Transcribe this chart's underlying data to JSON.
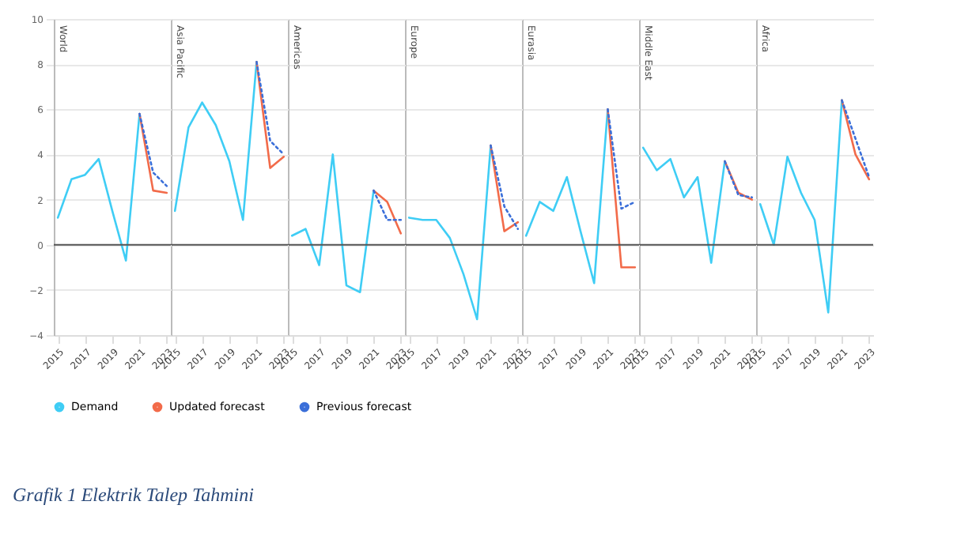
{
  "chart_data": [
    {
      "type": "line",
      "title": "World",
      "xlim": [
        2014.7,
        2023.3
      ],
      "xticks": [
        2015,
        2017,
        2019,
        2021,
        2023
      ],
      "ylim": [
        -4,
        10
      ],
      "yticks": [
        -4,
        -2,
        0,
        2,
        4,
        6,
        8,
        10
      ],
      "grid": "y",
      "legend": "bottom",
      "ref_lines": [
        {
          "axis": "y",
          "value": 0,
          "color": "#555555"
        }
      ],
      "annotations": [
        "Grafik 1 Elektrik Talep Tahmini"
      ],
      "series": [
        {
          "name": "Demand",
          "color": "#3fcdf5",
          "x": [
            2015,
            2016,
            2017,
            2018,
            2019,
            2020,
            2021
          ],
          "values": [
            1.2,
            2.9,
            3.1,
            3.8,
            1.5,
            -0.7,
            5.8
          ]
        },
        {
          "name": "Updated forecast",
          "color": "#f26b4a",
          "x": [
            2021,
            2022,
            2023
          ],
          "values": [
            5.8,
            2.4,
            2.3
          ]
        },
        {
          "name": "Previous forecast",
          "color": "#3b6fd9",
          "line_style": "dotted",
          "x": [
            2021,
            2022,
            2023
          ],
          "values": [
            5.8,
            3.2,
            2.6
          ]
        }
      ]
    },
    {
      "type": "line",
      "title": "Asia Pacific",
      "xlim": [
        2014.7,
        2023.3
      ],
      "xticks": [
        2015,
        2017,
        2019,
        2021,
        2023
      ],
      "ylim": [
        -4,
        10
      ],
      "yticks": [
        -4,
        -2,
        0,
        2,
        4,
        6,
        8,
        10
      ],
      "grid": "y",
      "tick_labels": "x",
      "ref_lines": [
        {
          "axis": "y",
          "value": 0,
          "color": "#555555"
        }
      ],
      "series": [
        {
          "color": "#3fcdf5",
          "x": [
            2015,
            2016,
            2017,
            2018,
            2019,
            2020,
            2021
          ],
          "values": [
            1.5,
            5.2,
            6.3,
            5.3,
            3.7,
            1.1,
            8.1
          ]
        },
        {
          "color": "#f26b4a",
          "x": [
            2021,
            2022,
            2023
          ],
          "values": [
            8.1,
            3.4,
            3.9
          ]
        },
        {
          "color": "#3b6fd9",
          "line_style": "dotted",
          "x": [
            2021,
            2022,
            2023
          ],
          "values": [
            8.1,
            4.6,
            4.0
          ]
        }
      ]
    },
    {
      "type": "line",
      "title": "Americas",
      "xlim": [
        2014.7,
        2023.3
      ],
      "xticks": [
        2015,
        2017,
        2019,
        2021,
        2023
      ],
      "ylim": [
        -4,
        10
      ],
      "yticks": [
        -4,
        -2,
        0,
        2,
        4,
        6,
        8,
        10
      ],
      "grid": "y",
      "tick_labels": "x",
      "ref_lines": [
        {
          "axis": "y",
          "value": 0,
          "color": "#555555"
        }
      ],
      "series": [
        {
          "color": "#3fcdf5",
          "x": [
            2015,
            2016,
            2017,
            2018,
            2019,
            2020,
            2021
          ],
          "values": [
            0.4,
            0.7,
            -0.9,
            4.0,
            -1.8,
            -2.1,
            2.4
          ]
        },
        {
          "color": "#f26b4a",
          "x": [
            2021,
            2022,
            2023
          ],
          "values": [
            2.4,
            1.9,
            0.5
          ]
        },
        {
          "color": "#3b6fd9",
          "line_style": "dotted",
          "x": [
            2021,
            2022,
            2023
          ],
          "values": [
            2.4,
            1.1,
            1.1
          ]
        }
      ]
    },
    {
      "type": "line",
      "title": "Europe",
      "xlim": [
        2014.7,
        2023.3
      ],
      "xticks": [
        2015,
        2017,
        2019,
        2021,
        2023
      ],
      "ylim": [
        -4,
        10
      ],
      "yticks": [
        -4,
        -2,
        0,
        2,
        4,
        6,
        8,
        10
      ],
      "grid": "y",
      "tick_labels": "x",
      "ref_lines": [
        {
          "axis": "y",
          "value": 0,
          "color": "#555555"
        }
      ],
      "series": [
        {
          "color": "#3fcdf5",
          "x": [
            2015,
            2016,
            2017,
            2018,
            2019,
            2020,
            2021
          ],
          "values": [
            1.2,
            1.1,
            1.1,
            0.3,
            -1.3,
            -3.3,
            4.4
          ]
        },
        {
          "color": "#f26b4a",
          "x": [
            2021,
            2022,
            2023
          ],
          "values": [
            4.4,
            0.6,
            1.0
          ]
        },
        {
          "color": "#3b6fd9",
          "line_style": "dotted",
          "x": [
            2021,
            2022,
            2023
          ],
          "values": [
            4.4,
            1.7,
            0.7
          ]
        }
      ]
    },
    {
      "type": "line",
      "title": "Eurasia",
      "xlim": [
        2014.7,
        2023.3
      ],
      "xticks": [
        2015,
        2017,
        2019,
        2021,
        2023
      ],
      "ylim": [
        -4,
        10
      ],
      "yticks": [
        -4,
        -2,
        0,
        2,
        4,
        6,
        8,
        10
      ],
      "grid": "y",
      "tick_labels": "x",
      "ref_lines": [
        {
          "axis": "y",
          "value": 0,
          "color": "#555555"
        }
      ],
      "series": [
        {
          "color": "#3fcdf5",
          "x": [
            2015,
            2016,
            2017,
            2018,
            2019,
            2020,
            2021
          ],
          "values": [
            0.4,
            1.9,
            1.5,
            3.0,
            0.6,
            -1.7,
            6.0
          ]
        },
        {
          "color": "#f26b4a",
          "x": [
            2021,
            2022,
            2023
          ],
          "values": [
            6.0,
            -1.0,
            -1.0
          ]
        },
        {
          "color": "#3b6fd9",
          "line_style": "dotted",
          "x": [
            2021,
            2022,
            2023
          ],
          "values": [
            6.0,
            1.6,
            1.9
          ]
        }
      ]
    },
    {
      "type": "line",
      "title": "Middle East",
      "xlim": [
        2014.7,
        2023.3
      ],
      "xticks": [
        2015,
        2017,
        2019,
        2021,
        2023
      ],
      "ylim": [
        -4,
        10
      ],
      "yticks": [
        -4,
        -2,
        0,
        2,
        4,
        6,
        8,
        10
      ],
      "grid": "y",
      "tick_labels": "x",
      "ref_lines": [
        {
          "axis": "y",
          "value": 0,
          "color": "#555555"
        }
      ],
      "series": [
        {
          "color": "#3fcdf5",
          "x": [
            2015,
            2016,
            2017,
            2018,
            2019,
            2020,
            2021
          ],
          "values": [
            4.3,
            3.3,
            3.8,
            2.1,
            3.0,
            -0.8,
            3.7
          ]
        },
        {
          "color": "#f26b4a",
          "x": [
            2021,
            2022,
            2023
          ],
          "values": [
            3.7,
            2.3,
            2.0
          ]
        },
        {
          "color": "#3b6fd9",
          "line_style": "dotted",
          "x": [
            2021,
            2022,
            2023
          ],
          "values": [
            3.7,
            2.2,
            2.1
          ]
        }
      ]
    },
    {
      "type": "line",
      "title": "Africa",
      "xlim": [
        2014.7,
        2023.3
      ],
      "xticks": [
        2015,
        2017,
        2019,
        2021,
        2023
      ],
      "ylim": [
        -4,
        10
      ],
      "yticks": [
        -4,
        -2,
        0,
        2,
        4,
        6,
        8,
        10
      ],
      "grid": "y",
      "tick_labels": "x",
      "ref_lines": [
        {
          "axis": "y",
          "value": 0,
          "color": "#555555"
        }
      ],
      "series": [
        {
          "color": "#3fcdf5",
          "x": [
            2015,
            2016,
            2017,
            2018,
            2019,
            2020,
            2021
          ],
          "values": [
            1.8,
            0.0,
            3.9,
            2.3,
            1.1,
            -3.0,
            6.4
          ]
        },
        {
          "color": "#f26b4a",
          "x": [
            2021,
            2022,
            2023
          ],
          "values": [
            6.4,
            4.0,
            2.9
          ]
        },
        {
          "color": "#3b6fd9",
          "line_style": "dotted",
          "x": [
            2021,
            2022,
            2023
          ],
          "values": [
            6.4,
            4.7,
            3.0
          ]
        }
      ]
    }
  ]
}
